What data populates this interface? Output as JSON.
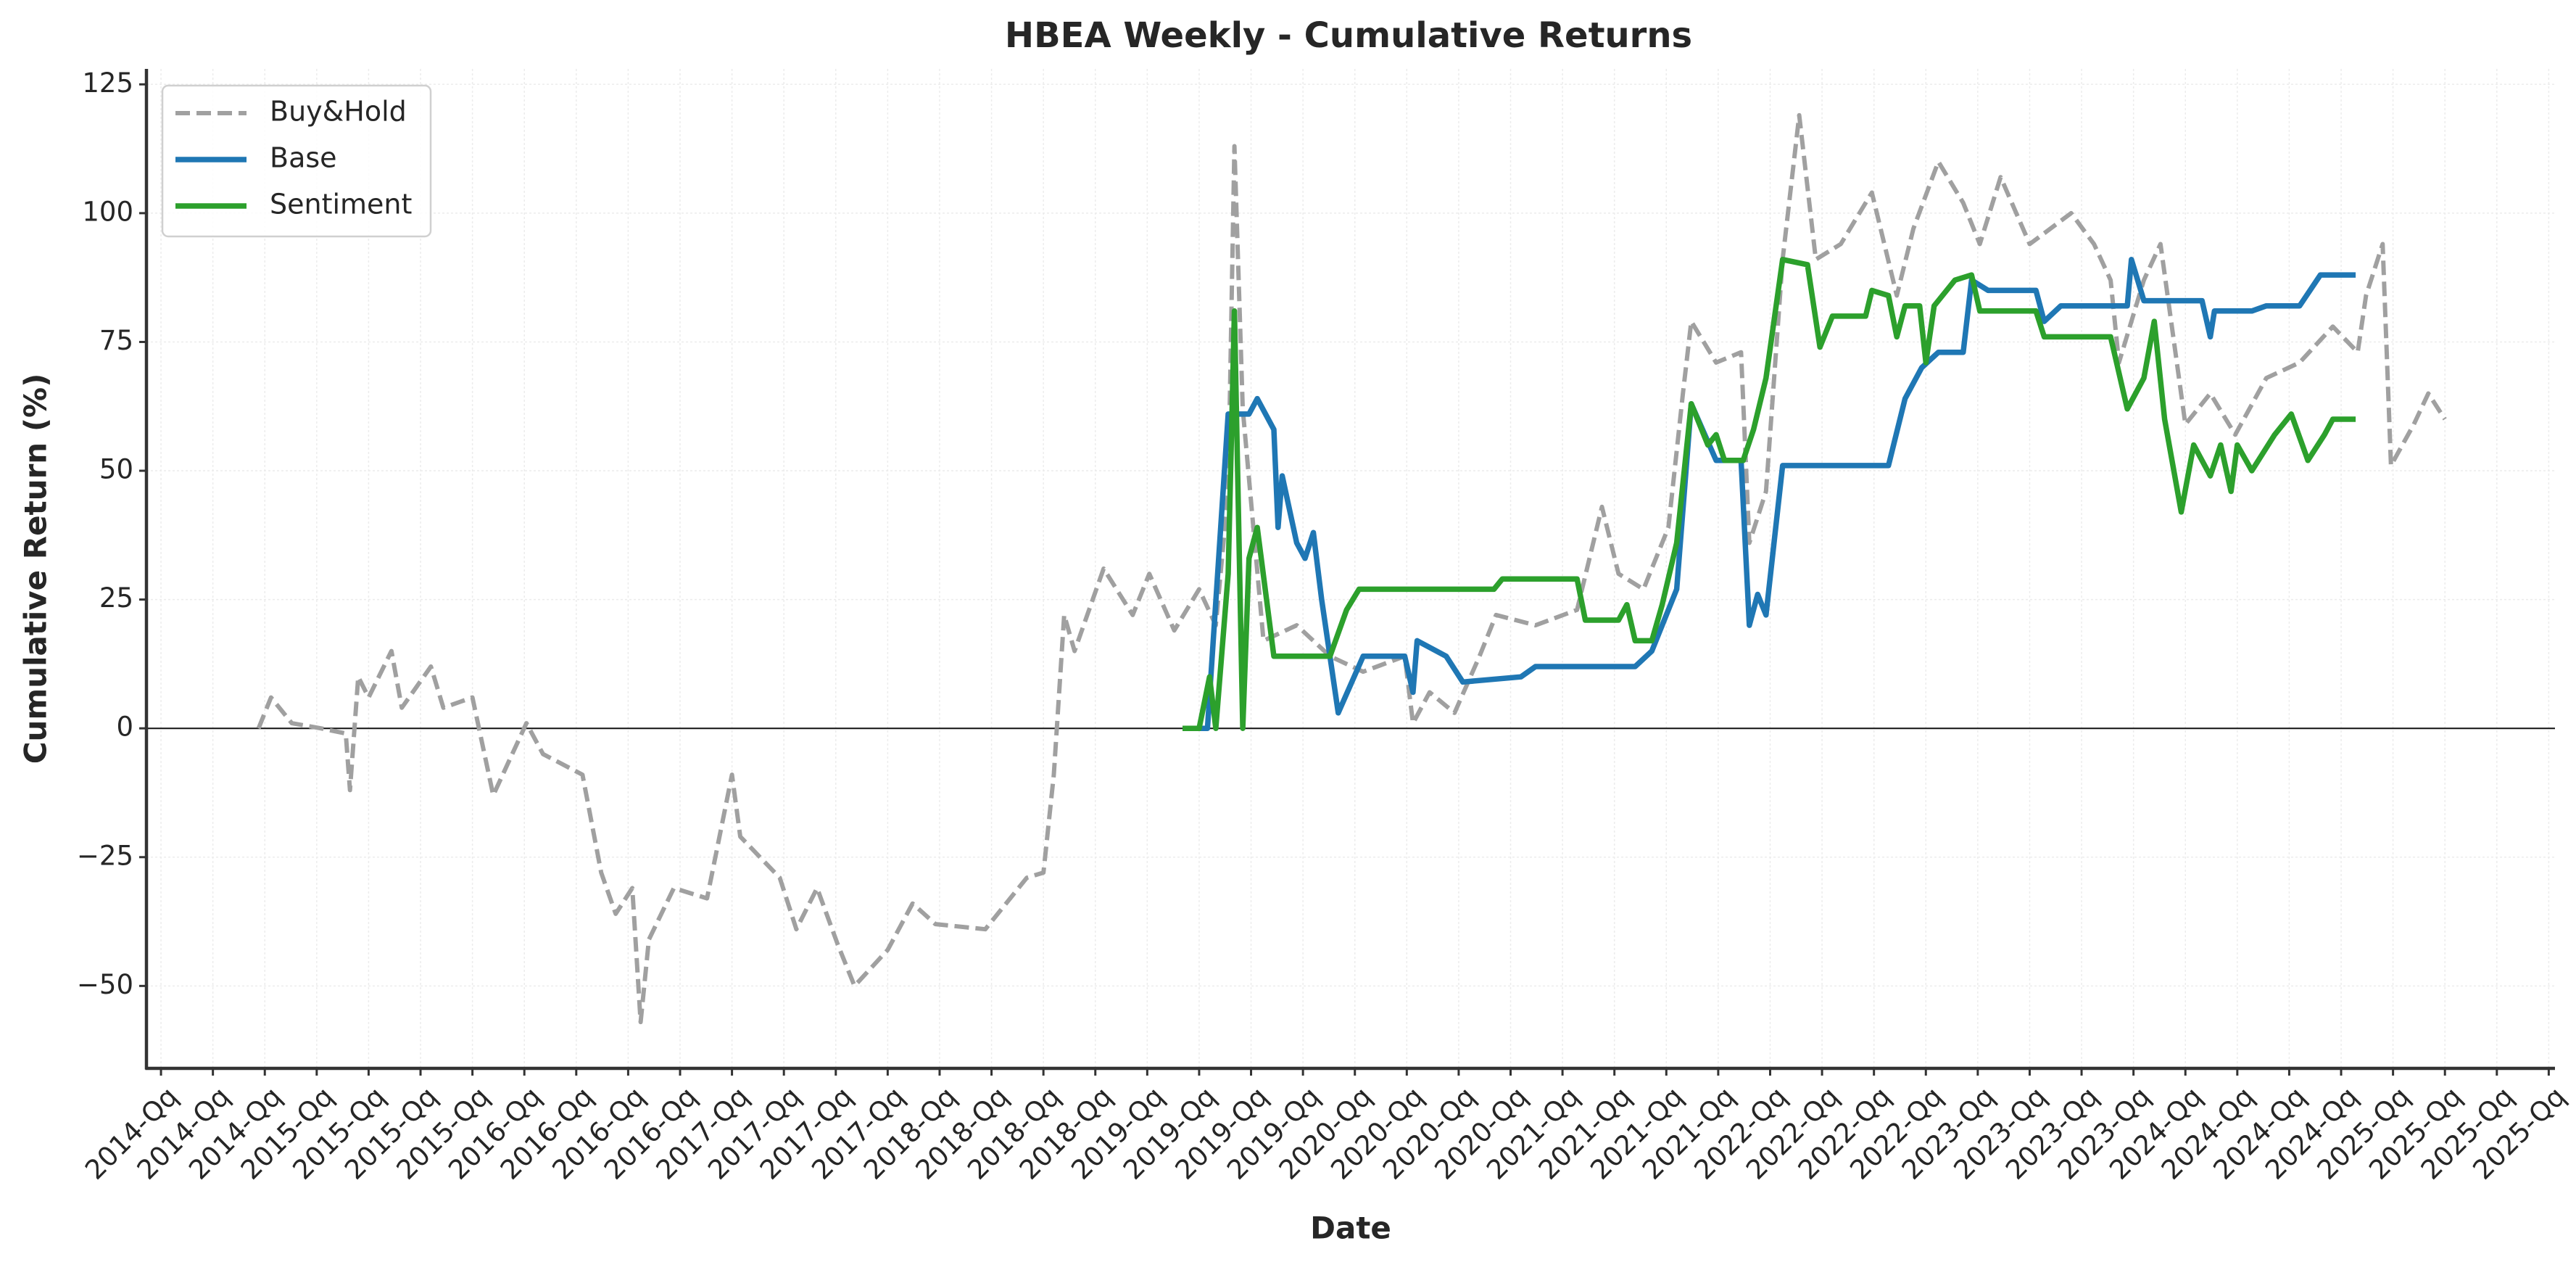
{
  "chart_data": {
    "type": "line",
    "title": "HBEA Weekly - Cumulative Returns",
    "x_label": "Date",
    "y_label": "Cumulative Return (%)",
    "xlim": [
      2014.18,
      2025.78
    ],
    "ylim": [
      -66,
      128
    ],
    "grid": true,
    "zero_line": true,
    "legend": "upper left",
    "yticks": [
      {
        "value": -50,
        "label": "−50"
      },
      {
        "value": -25,
        "label": "−25"
      },
      0,
      25,
      50,
      75,
      100,
      125
    ],
    "xticks": [
      {
        "value": 2014.25,
        "label": "2014-Qq"
      },
      {
        "value": 2014.5,
        "label": "2014-Qq"
      },
      {
        "value": 2014.75,
        "label": "2014-Qq"
      },
      {
        "value": 2015.0,
        "label": "2015-Qq"
      },
      {
        "value": 2015.25,
        "label": "2015-Qq"
      },
      {
        "value": 2015.5,
        "label": "2015-Qq"
      },
      {
        "value": 2015.75,
        "label": "2015-Qq"
      },
      {
        "value": 2016.0,
        "label": "2016-Qq"
      },
      {
        "value": 2016.25,
        "label": "2016-Qq"
      },
      {
        "value": 2016.5,
        "label": "2016-Qq"
      },
      {
        "value": 2016.75,
        "label": "2016-Qq"
      },
      {
        "value": 2017.0,
        "label": "2017-Qq"
      },
      {
        "value": 2017.25,
        "label": "2017-Qq"
      },
      {
        "value": 2017.5,
        "label": "2017-Qq"
      },
      {
        "value": 2017.75,
        "label": "2017-Qq"
      },
      {
        "value": 2018.0,
        "label": "2018-Qq"
      },
      {
        "value": 2018.25,
        "label": "2018-Qq"
      },
      {
        "value": 2018.5,
        "label": "2018-Qq"
      },
      {
        "value": 2018.75,
        "label": "2018-Qq"
      },
      {
        "value": 2019.0,
        "label": "2019-Qq"
      },
      {
        "value": 2019.25,
        "label": "2019-Qq"
      },
      {
        "value": 2019.5,
        "label": "2019-Qq"
      },
      {
        "value": 2019.75,
        "label": "2019-Qq"
      },
      {
        "value": 2020.0,
        "label": "2020-Qq"
      },
      {
        "value": 2020.25,
        "label": "2020-Qq"
      },
      {
        "value": 2020.5,
        "label": "2020-Qq"
      },
      {
        "value": 2020.75,
        "label": "2020-Qq"
      },
      {
        "value": 2021.0,
        "label": "2021-Qq"
      },
      {
        "value": 2021.25,
        "label": "2021-Qq"
      },
      {
        "value": 2021.5,
        "label": "2021-Qq"
      },
      {
        "value": 2021.75,
        "label": "2021-Qq"
      },
      {
        "value": 2022.0,
        "label": "2022-Qq"
      },
      {
        "value": 2022.25,
        "label": "2022-Qq"
      },
      {
        "value": 2022.5,
        "label": "2022-Qq"
      },
      {
        "value": 2022.75,
        "label": "2022-Qq"
      },
      {
        "value": 2023.0,
        "label": "2023-Qq"
      },
      {
        "value": 2023.25,
        "label": "2023-Qq"
      },
      {
        "value": 2023.5,
        "label": "2023-Qq"
      },
      {
        "value": 2023.75,
        "label": "2023-Qq"
      },
      {
        "value": 2024.0,
        "label": "2024-Qq"
      },
      {
        "value": 2024.25,
        "label": "2024-Qq"
      },
      {
        "value": 2024.5,
        "label": "2024-Qq"
      },
      {
        "value": 2024.75,
        "label": "2024-Qq"
      },
      {
        "value": 2025.0,
        "label": "2025-Qq"
      },
      {
        "value": 2025.25,
        "label": "2025-Qq"
      },
      {
        "value": 2025.5,
        "label": "2025-Qq"
      },
      {
        "value": 2025.75,
        "label": "2025-Qq"
      }
    ],
    "series": [
      {
        "name": "Buy&Hold",
        "color": "#a0a0a0",
        "linestyle": "dashed",
        "x": [
          2014.72,
          2014.78,
          2014.88,
          2015.02,
          2015.14,
          2015.16,
          2015.2,
          2015.25,
          2015.36,
          2015.41,
          2015.55,
          2015.61,
          2015.75,
          2015.85,
          2016.01,
          2016.09,
          2016.28,
          2016.37,
          2016.44,
          2016.52,
          2016.56,
          2016.6,
          2016.72,
          2016.88,
          2017.0,
          2017.04,
          2017.23,
          2017.31,
          2017.41,
          2017.51,
          2017.59,
          2017.75,
          2017.87,
          2017.98,
          2018.22,
          2018.42,
          2018.5,
          2018.55,
          2018.6,
          2018.65,
          2018.79,
          2018.93,
          2019.01,
          2019.13,
          2019.25,
          2019.33,
          2019.39,
          2019.42,
          2019.46,
          2019.56,
          2019.72,
          2019.88,
          2020.04,
          2020.24,
          2020.28,
          2020.36,
          2020.48,
          2020.6,
          2020.68,
          2020.87,
          2021.07,
          2021.19,
          2021.27,
          2021.39,
          2021.51,
          2021.58,
          2021.62,
          2021.74,
          2021.86,
          2021.9,
          2021.98,
          2022.06,
          2022.14,
          2022.22,
          2022.34,
          2022.49,
          2022.61,
          2022.69,
          2022.81,
          2022.93,
          2023.01,
          2023.11,
          2023.25,
          2023.45,
          2023.56,
          2023.64,
          2023.68,
          2023.8,
          2023.88,
          2024.0,
          2024.12,
          2024.24,
          2024.39,
          2024.55,
          2024.71,
          2024.83,
          2024.87,
          2024.95,
          2024.99,
          2025.1,
          2025.17,
          2025.25
        ],
        "values": [
          0,
          6,
          1,
          0,
          -1,
          -12,
          10,
          6,
          15,
          4,
          12,
          4,
          6,
          -13,
          1,
          -5,
          -9,
          -28,
          -36,
          -31,
          -57,
          -41,
          -31,
          -33,
          -9,
          -21,
          -29,
          -39,
          -31,
          -42,
          -50,
          -43,
          -34,
          -38,
          -39,
          -29,
          -28,
          -9,
          22,
          15,
          31,
          22,
          30,
          19,
          27,
          20,
          46,
          113,
          62,
          17,
          20,
          14,
          11,
          14,
          1,
          7,
          3,
          14,
          22,
          20,
          23,
          43,
          30,
          27,
          39,
          65,
          79,
          71,
          73,
          36,
          46,
          91,
          119,
          91,
          94,
          104,
          84,
          97,
          110,
          102,
          94,
          107,
          94,
          100,
          94,
          87,
          71,
          87,
          94,
          59,
          65,
          57,
          68,
          71,
          78,
          73,
          84,
          94,
          51,
          59,
          65,
          60
        ]
      },
      {
        "name": "Base",
        "color": "#1f77b4",
        "linestyle": "solid",
        "x": [
          2019.17,
          2019.29,
          2019.39,
          2019.49,
          2019.53,
          2019.61,
          2019.63,
          2019.65,
          2019.72,
          2019.76,
          2019.8,
          2019.84,
          2019.92,
          2020.04,
          2020.24,
          2020.28,
          2020.3,
          2020.44,
          2020.52,
          2020.8,
          2020.87,
          2021.35,
          2021.43,
          2021.55,
          2021.62,
          2021.74,
          2021.86,
          2021.9,
          2021.94,
          2021.98,
          2022.06,
          2022.57,
          2022.65,
          2022.73,
          2022.81,
          2022.93,
          2022.97,
          2023.05,
          2023.28,
          2023.32,
          2023.4,
          2023.72,
          2023.74,
          2023.8,
          2024.08,
          2024.12,
          2024.14,
          2024.32,
          2024.39,
          2024.55,
          2024.65,
          2024.82
        ],
        "values": [
          0,
          0,
          61,
          61,
          64,
          58,
          39,
          49,
          36,
          33,
          38,
          25,
          3,
          14,
          14,
          7,
          17,
          14,
          9,
          10,
          12,
          12,
          15,
          27,
          63,
          52,
          52,
          20,
          26,
          22,
          51,
          51,
          64,
          70,
          73,
          73,
          87,
          85,
          85,
          79,
          82,
          82,
          91,
          83,
          83,
          76,
          81,
          81,
          82,
          82,
          88,
          88
        ]
      },
      {
        "name": "Sentiment",
        "color": "#2ca02c",
        "linestyle": "solid",
        "x": [
          2019.17,
          2019.25,
          2019.3,
          2019.33,
          2019.39,
          2019.42,
          2019.46,
          2019.49,
          2019.53,
          2019.61,
          2019.88,
          2019.96,
          2020.02,
          2020.67,
          2020.71,
          2021.07,
          2021.11,
          2021.27,
          2021.31,
          2021.35,
          2021.43,
          2021.48,
          2021.55,
          2021.62,
          2021.7,
          2021.74,
          2021.78,
          2021.87,
          2021.92,
          2021.98,
          2022.06,
          2022.18,
          2022.24,
          2022.3,
          2022.46,
          2022.49,
          2022.57,
          2022.61,
          2022.65,
          2022.72,
          2022.75,
          2022.79,
          2022.89,
          2022.97,
          2023.01,
          2023.28,
          2023.32,
          2023.64,
          2023.72,
          2023.8,
          2023.85,
          2023.9,
          2023.98,
          2024.04,
          2024.12,
          2024.17,
          2024.22,
          2024.25,
          2024.32,
          2024.43,
          2024.51,
          2024.59,
          2024.67,
          2024.71,
          2024.82
        ],
        "values": [
          0,
          0,
          10,
          0,
          30,
          81,
          0,
          33,
          39,
          14,
          14,
          23,
          27,
          27,
          29,
          29,
          21,
          21,
          24,
          17,
          17,
          24,
          36,
          63,
          55,
          57,
          52,
          52,
          58,
          68,
          91,
          90,
          74,
          80,
          80,
          85,
          84,
          76,
          82,
          82,
          71,
          82,
          87,
          88,
          81,
          81,
          76,
          76,
          62,
          68,
          79,
          60,
          42,
          55,
          49,
          55,
          46,
          55,
          50,
          57,
          61,
          52,
          57,
          60,
          60
        ]
      }
    ]
  }
}
